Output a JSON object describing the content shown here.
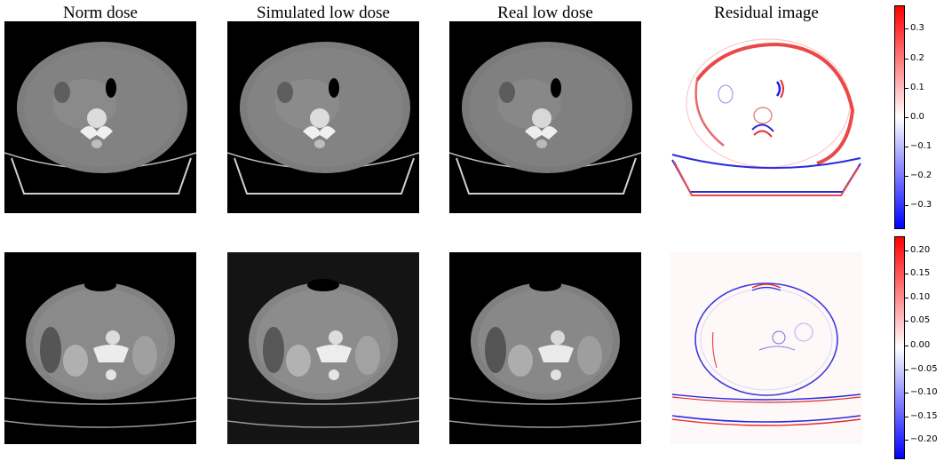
{
  "column_titles": [
    "Norm dose",
    "Simulated low dose",
    "Real low dose",
    "Residual image"
  ],
  "rows": [
    {
      "colorbar": {
        "ticks": [
          "0.3",
          "0.2",
          "0.1",
          "0.0",
          "−0.1",
          "−0.2",
          "−0.3"
        ],
        "min": -0.38,
        "max": 0.38,
        "colormap": [
          "#0000ff",
          "#ffffff",
          "#ff0000"
        ]
      }
    },
    {
      "colorbar": {
        "ticks": [
          "0.20",
          "0.15",
          "0.10",
          "0.05",
          "0.00",
          "−0.05",
          "−0.10",
          "−0.15",
          "−0.20"
        ],
        "min": -0.225,
        "max": 0.225,
        "colormap": [
          "#0000ff",
          "#ffffff",
          "#ff0000"
        ]
      }
    }
  ]
}
